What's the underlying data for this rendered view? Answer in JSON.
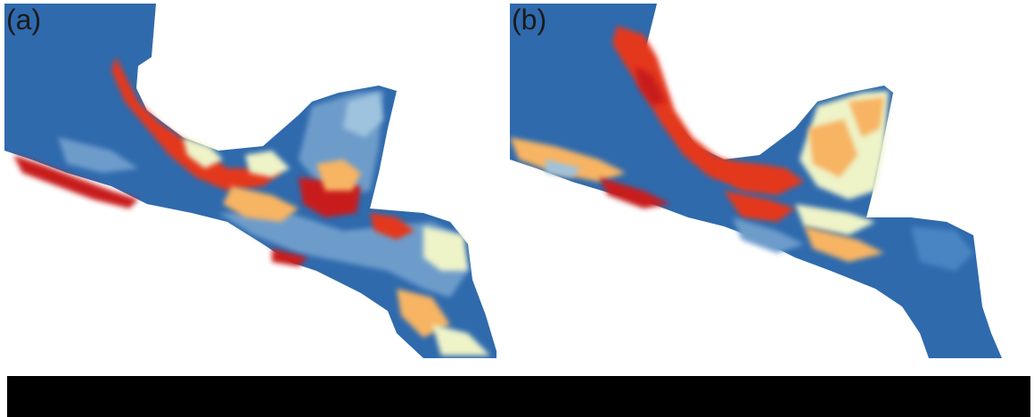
{
  "panels": [
    {
      "label": "(a)"
    },
    {
      "label": "(b)"
    }
  ],
  "colors": {
    "ocean": "#2f6aad",
    "low": "#4a85c2",
    "low_mid": "#9ec3de",
    "mid": "#eef3c8",
    "mid_high": "#f7b463",
    "high": "#e4391f",
    "very_high": "#c81d1d",
    "background": "#ffffff",
    "bar": "#000000"
  }
}
